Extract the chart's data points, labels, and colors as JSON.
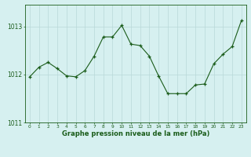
{
  "x": [
    0,
    1,
    2,
    3,
    4,
    5,
    6,
    7,
    8,
    9,
    10,
    11,
    12,
    13,
    14,
    15,
    16,
    17,
    18,
    19,
    20,
    21,
    22,
    23
  ],
  "y": [
    1011.95,
    1012.15,
    1012.25,
    1012.12,
    1011.97,
    1011.95,
    1012.08,
    1012.38,
    1012.78,
    1012.78,
    1013.02,
    1012.63,
    1012.6,
    1012.38,
    1011.97,
    1011.6,
    1011.6,
    1011.6,
    1011.78,
    1011.8,
    1012.22,
    1012.42,
    1012.58,
    1013.12
  ],
  "line_color": "#1a5c1a",
  "marker": "+",
  "bg_color": "#d6f0f0",
  "grid_color": "#b8d8d8",
  "xlabel": "Graphe pression niveau de la mer (hPa)",
  "xlabel_color": "#1a5c1a",
  "tick_color": "#1a5c1a",
  "yticks": [
    1011,
    1012,
    1013
  ],
  "ylim": [
    1011.25,
    1013.45
  ],
  "xlim": [
    -0.5,
    23.5
  ],
  "xtick_labels": [
    "0",
    "1",
    "2",
    "3",
    "4",
    "5",
    "6",
    "7",
    "8",
    "9",
    "10",
    "11",
    "12",
    "13",
    "14",
    "15",
    "16",
    "17",
    "18",
    "19",
    "20",
    "21",
    "22",
    "23"
  ]
}
